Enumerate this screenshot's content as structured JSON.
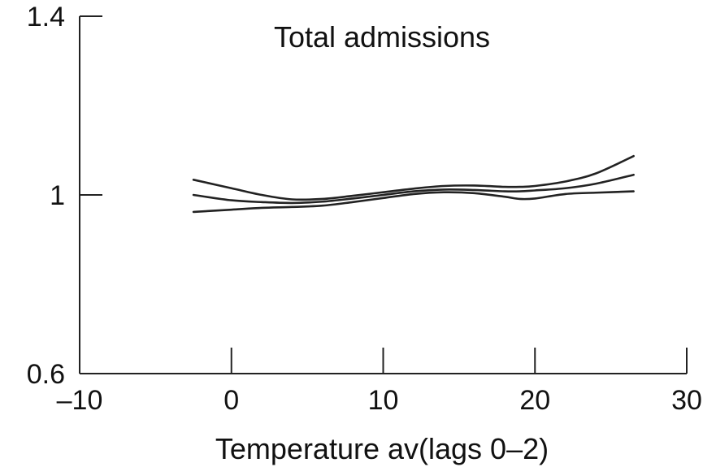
{
  "chart_data": {
    "type": "line",
    "title": "Total admissions",
    "xlabel": "Temperature av(lags 0–2)",
    "ylabel": "",
    "xlim": [
      -10,
      30
    ],
    "ylim": [
      0.6,
      1.4
    ],
    "x_ticks": [
      -10,
      0,
      10,
      20,
      30
    ],
    "x_tick_labels": [
      "–10",
      "0",
      "10",
      "20",
      "30"
    ],
    "y_ticks": [
      0.6,
      1,
      1.4
    ],
    "y_tick_labels": [
      "0.6",
      "1",
      "1.4"
    ],
    "grid": false,
    "legend": "none",
    "line_color": "#222222",
    "series": [
      {
        "x": [
          -2.5,
          0,
          2,
          4,
          6,
          8,
          10,
          12,
          14,
          16,
          18,
          19,
          20,
          22,
          24,
          26.5
        ],
        "values": [
          1.034,
          1.015,
          1.0,
          0.99,
          0.991,
          0.998,
          1.006,
          1.014,
          1.02,
          1.021,
          1.018,
          1.018,
          1.02,
          1.03,
          1.048,
          1.087
        ]
      },
      {
        "x": [
          -2.5,
          0,
          2,
          4,
          6,
          8,
          10,
          12,
          14,
          16,
          18,
          19,
          20,
          22,
          24,
          26.5
        ],
        "values": [
          1.0,
          0.988,
          0.984,
          0.982,
          0.985,
          0.992,
          1.0,
          1.008,
          1.012,
          1.011,
          1.008,
          1.008,
          1.01,
          1.015,
          1.025,
          1.045
        ]
      },
      {
        "x": [
          -2.5,
          0,
          2,
          4,
          6,
          8,
          10,
          12,
          14,
          16,
          18,
          19,
          20,
          22,
          24,
          26.5
        ],
        "values": [
          0.962,
          0.967,
          0.971,
          0.973,
          0.976,
          0.984,
          0.993,
          1.002,
          1.006,
          1.004,
          0.996,
          0.991,
          0.992,
          1.002,
          1.005,
          1.008
        ]
      }
    ]
  }
}
